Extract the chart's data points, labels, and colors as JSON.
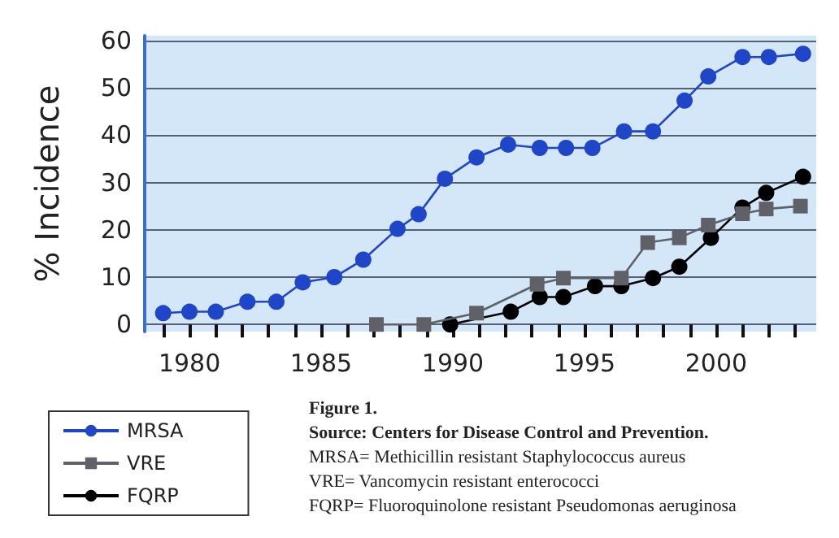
{
  "chart_data": {
    "type": "line",
    "ylabel": "% Incidence",
    "xlim": [
      1978.3,
      2003.8
    ],
    "ylim": [
      -1.5,
      61
    ],
    "yticks": [
      0,
      10,
      20,
      30,
      40,
      50,
      60
    ],
    "xticks": [
      {
        "value": 1979,
        "label": null
      },
      1980,
      {
        "value": 1981,
        "label": null
      },
      {
        "value": 1982,
        "label": null
      },
      {
        "value": 1983,
        "label": null
      },
      {
        "value": 1984,
        "label": null
      },
      1985,
      {
        "value": 1986,
        "label": null
      },
      {
        "value": 1987,
        "label": null
      },
      {
        "value": 1988,
        "label": null
      },
      {
        "value": 1989,
        "label": null
      },
      1990,
      {
        "value": 1991,
        "label": null
      },
      {
        "value": 1992,
        "label": null
      },
      {
        "value": 1993,
        "label": null
      },
      {
        "value": 1994,
        "label": null
      },
      1995,
      {
        "value": 1996,
        "label": null
      },
      {
        "value": 1997,
        "label": null
      },
      {
        "value": 1998,
        "label": null
      },
      {
        "value": 1999,
        "label": null
      },
      2000,
      {
        "value": 2001,
        "label": null
      },
      {
        "value": 2002,
        "label": null
      },
      {
        "value": 2003,
        "label": null
      }
    ],
    "grid": "y",
    "legend": "bottom left",
    "line_style": "solid",
    "series": [
      {
        "name": "MRSA",
        "color": "#1f45c8",
        "marker": "circle",
        "x": [
          1979,
          1980,
          1981,
          1982.2,
          1983.3,
          1984.3,
          1985.5,
          1986.6,
          1987.9,
          1988.7,
          1989.7,
          1990.9,
          1992.1,
          1993.3,
          1994.3,
          1995.3,
          1996.5,
          1997.6,
          1998.8,
          1999.7,
          2001,
          2002,
          2003.3
        ],
        "values": [
          2.4,
          2.7,
          2.7,
          4.8,
          4.8,
          8.9,
          10,
          13.7,
          20.2,
          23.3,
          30.8,
          35.3,
          38,
          37.3,
          37.3,
          37.3,
          40.8,
          40.8,
          47.3,
          52.4,
          56.5,
          56.5,
          57.2
        ]
      },
      {
        "name": "VRE",
        "color": "#606068",
        "marker": "square",
        "x": [
          1987.1,
          1988.9,
          1990.9,
          1993.2,
          1994.2,
          1996.4,
          1997.4,
          1998.6,
          1999.7,
          2001,
          2001.9,
          2003.2
        ],
        "values": [
          0,
          0,
          2.4,
          8.5,
          9.8,
          9.8,
          17.3,
          18.3,
          21,
          23.4,
          24.4,
          25
        ]
      },
      {
        "name": "FQRP",
        "color": "#000000",
        "marker": "circle",
        "x": [
          1989.9,
          1992.2,
          1993.3,
          1994.2,
          1995.4,
          1996.4,
          1997.6,
          1998.6,
          1999.8,
          2001,
          2001.9,
          2003.3
        ],
        "values": [
          0,
          2.7,
          5.8,
          5.8,
          8.1,
          8.1,
          9.8,
          12.2,
          18.3,
          24.7,
          27.8,
          31.2
        ]
      }
    ],
    "annotations": [
      "Figure 1.",
      "Source: Centers for Disease Control and Prevention.",
      "MRSA= Methicillin resistant Staphylococcus aureus",
      "VRE= Vancomycin resistant enterococci",
      "FQRP= Fluoroquinolone resistant Pseudomonas aeruginosa"
    ]
  }
}
